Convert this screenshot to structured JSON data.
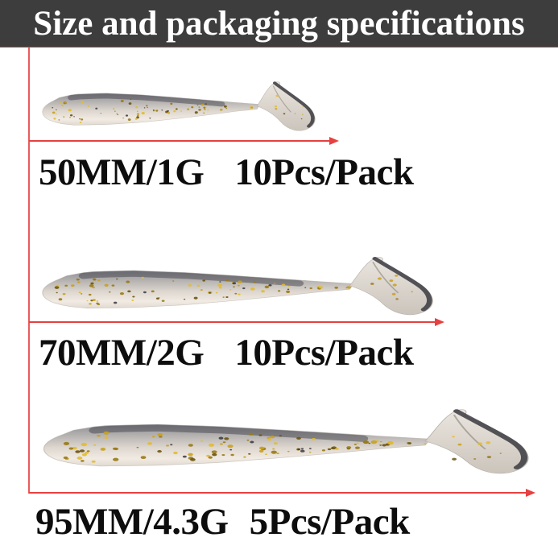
{
  "banner": {
    "title": "Size and packaging specifications",
    "bg_color": "#3d3d3d",
    "text_color": "#ffffff"
  },
  "accent": {
    "measure_line_color": "#e64040"
  },
  "products": [
    {
      "size_label": "50MM/1G",
      "pack_label": "10Pcs/Pack"
    },
    {
      "size_label": "70MM/2G",
      "pack_label": "10Pcs/Pack"
    },
    {
      "size_label": "95MM/4.3G",
      "pack_label": "5Pcs/Pack"
    }
  ],
  "photo": {
    "subject": "soft-plastic-paddle-tail-fishing-lure",
    "body_color_top": "#8f8f96",
    "body_color_belly": "#f1ebe3",
    "glitter_color": "#d4a92a"
  }
}
